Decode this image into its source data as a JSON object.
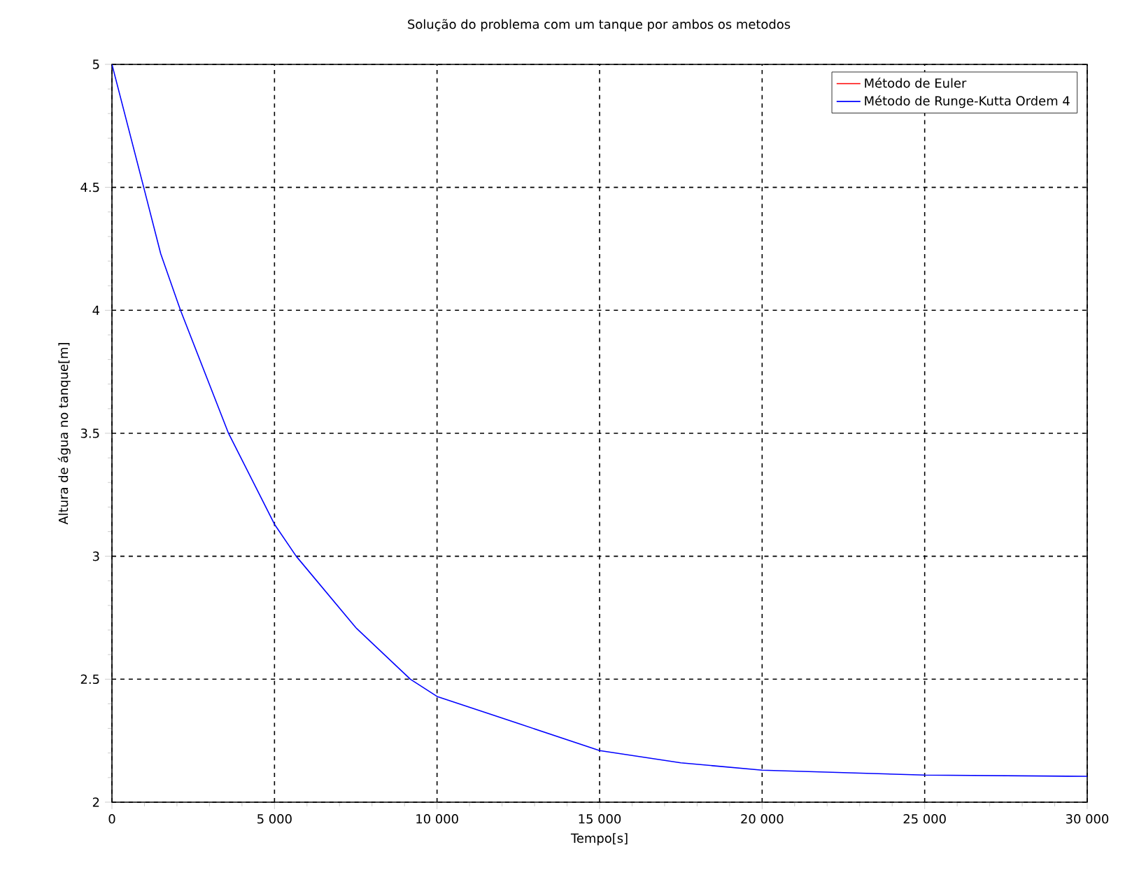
{
  "chart_data": {
    "type": "line",
    "title": "Solução do problema com um tanque por ambos os metodos",
    "xlabel": "Tempo[s]",
    "ylabel": "Altura de água no tanque[m]",
    "x": [
      0,
      977,
      1500,
      2109,
      3585,
      5000,
      5668,
      7500,
      9181,
      10000,
      12500,
      15000,
      17500,
      20000,
      22500,
      25000,
      30000
    ],
    "series": [
      {
        "name": "Método de Euler",
        "color": "#ff0000",
        "values": [
          null,
          null,
          null,
          null,
          null,
          null,
          null,
          null,
          null,
          null,
          null,
          null,
          null,
          null,
          null,
          null,
          null
        ]
      },
      {
        "name": "Método de Runge-Kutta Ordem 4",
        "color": "#0000ff",
        "values": [
          5,
          4.5,
          4.23,
          4,
          3.5,
          3.13,
          3,
          2.71,
          2.5,
          2.43,
          2.32,
          2.21,
          2.16,
          2.13,
          2.12,
          2.11,
          2.105
        ]
      }
    ],
    "xlim": [
      0,
      30000
    ],
    "ylim": [
      2,
      5
    ],
    "xticks": [
      0,
      {
        "value": 5000,
        "label": "5 000"
      },
      {
        "value": 10000,
        "label": "10 000"
      },
      {
        "value": 15000,
        "label": "15 000"
      },
      {
        "value": 20000,
        "label": "20 000"
      },
      {
        "value": 25000,
        "label": "25 000"
      },
      {
        "value": 30000,
        "label": "30 000"
      }
    ],
    "yticks": [
      2,
      2.5,
      3,
      3.5,
      4,
      4.5,
      5
    ],
    "grid": true,
    "legend": "top right",
    "marker": "none",
    "line_style": "solid"
  }
}
